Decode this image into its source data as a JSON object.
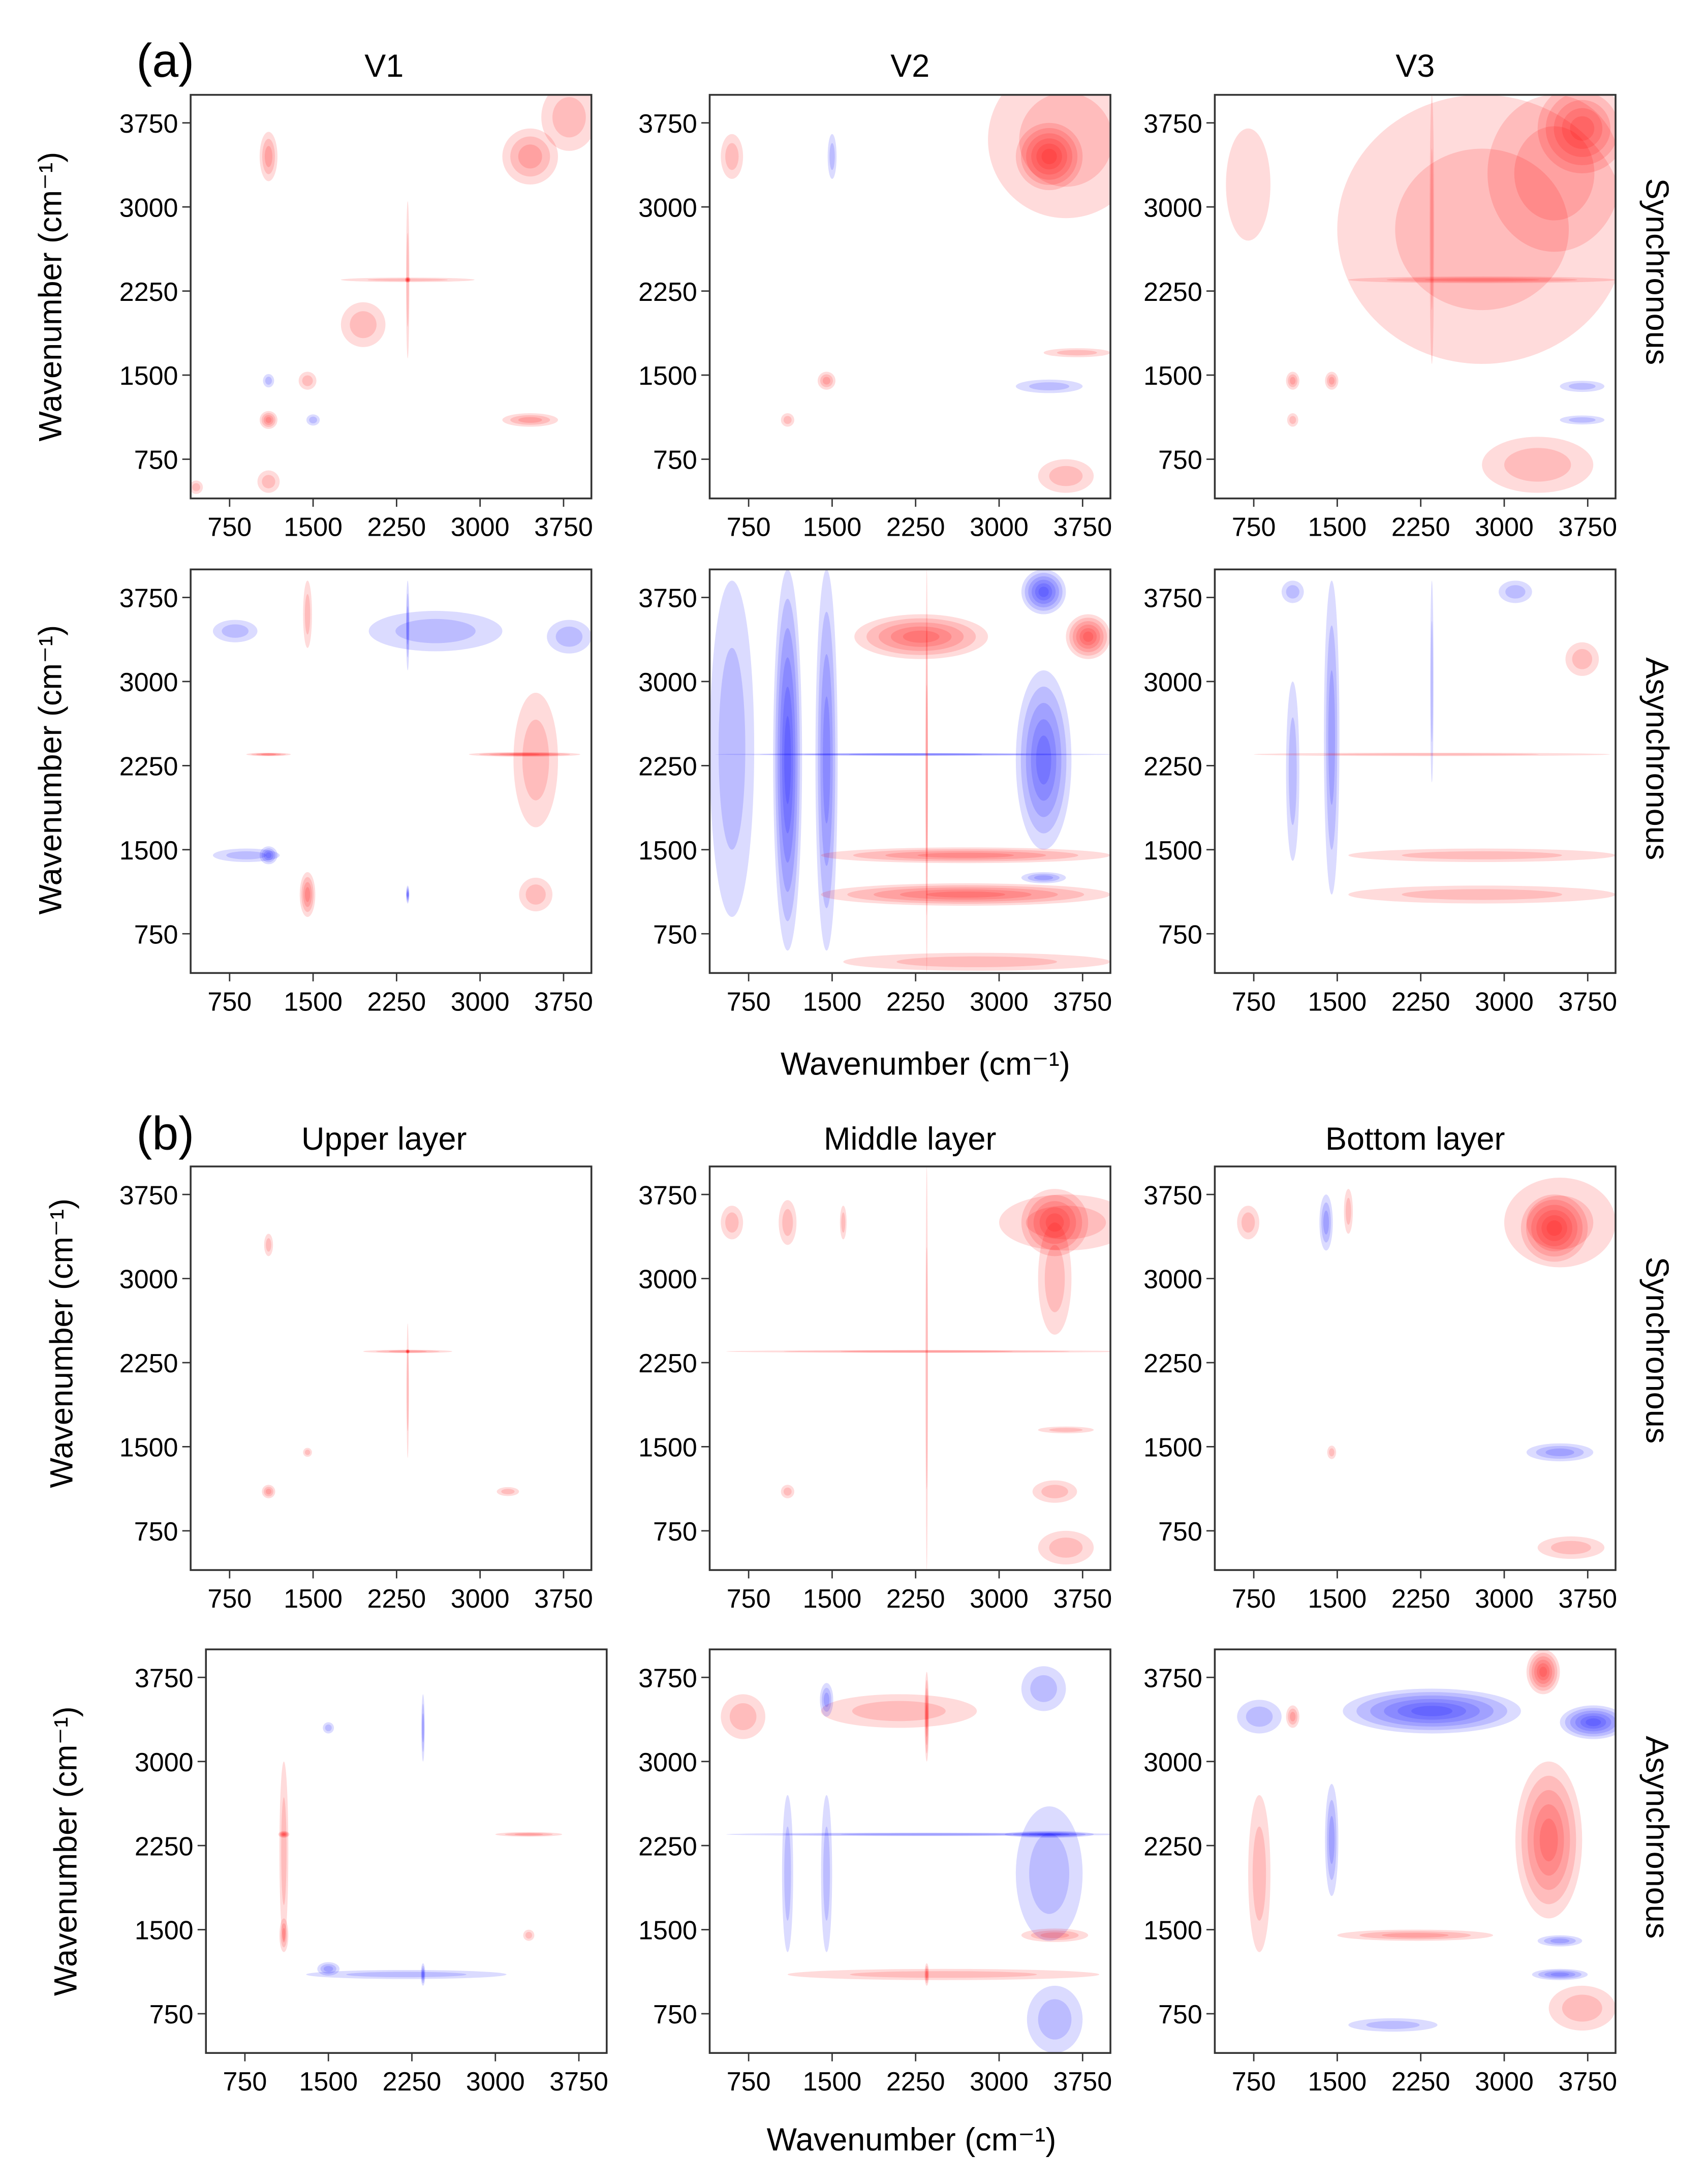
{
  "chart_data": {
    "type": "heatmap",
    "description_labels": {
      "group_a": "(a)",
      "group_b": "(b)",
      "row_sync": "Synchronous",
      "row_async": "Asynchronous",
      "ylabel": "Wavenumber (cm⁻¹)",
      "xlabel_a": "Wavenumber  (cm⁻¹)",
      "xlabel_b": "Wavenumber (cm⁻¹)"
    },
    "colors": {
      "positive": "#ff0000",
      "negative": "#0000ff",
      "frame": "#333333"
    },
    "xlim": [
      400,
      4000
    ],
    "ylim": [
      400,
      4000
    ],
    "ticks": [
      750,
      1500,
      2250,
      3000,
      3750
    ],
    "feature_format": "[x_wavenumber, y_wavenumber, x_halfwidth, y_halfwidth, sign, relative_intensity]",
    "panels": [
      {
        "group": "a",
        "title": "V1",
        "type": "Synchronous",
        "features": [
          [
            3450,
            3450,
            250,
            250,
            1,
            0.5
          ],
          [
            3800,
            3800,
            250,
            300,
            1,
            0.2
          ],
          [
            1100,
            3450,
            80,
            220,
            1,
            0.4
          ],
          [
            1100,
            1100,
            80,
            80,
            1,
            0.6
          ],
          [
            3450,
            1100,
            250,
            60,
            1,
            0.4
          ],
          [
            2350,
            2350,
            600,
            20,
            1,
            0.3
          ],
          [
            2350,
            2350,
            15,
            700,
            1,
            0.3
          ],
          [
            2350,
            2350,
            25,
            25,
            1,
            1.0
          ],
          [
            1950,
            1950,
            200,
            200,
            1,
            0.2
          ],
          [
            1450,
            1450,
            80,
            80,
            1,
            0.2
          ],
          [
            1100,
            1450,
            50,
            60,
            -1,
            0.2
          ],
          [
            1500,
            1100,
            60,
            50,
            -1,
            0.2
          ],
          [
            450,
            500,
            60,
            60,
            1,
            0.2
          ],
          [
            1100,
            550,
            100,
            100,
            1,
            0.2
          ]
        ]
      },
      {
        "group": "a",
        "title": "V2",
        "type": "Synchronous",
        "features": [
          [
            3600,
            3600,
            700,
            700,
            1,
            0.25
          ],
          [
            3450,
            3450,
            300,
            300,
            1,
            0.9
          ],
          [
            1450,
            1450,
            80,
            80,
            1,
            0.4
          ],
          [
            3450,
            1400,
            300,
            60,
            -1,
            0.3
          ],
          [
            600,
            3450,
            100,
            200,
            1,
            0.2
          ],
          [
            3600,
            600,
            250,
            150,
            1,
            0.3
          ],
          [
            1100,
            1100,
            60,
            60,
            1,
            0.2
          ],
          [
            3700,
            1700,
            300,
            40,
            1,
            0.2
          ],
          [
            1500,
            3450,
            40,
            200,
            -1,
            0.2
          ]
        ]
      },
      {
        "group": "a",
        "title": "V3",
        "type": "Synchronous",
        "features": [
          [
            2800,
            2800,
            1300,
            1200,
            1,
            0.2
          ],
          [
            3450,
            3300,
            600,
            700,
            1,
            0.3
          ],
          [
            3700,
            3700,
            400,
            400,
            1,
            0.7
          ],
          [
            2800,
            2350,
            1200,
            30,
            1,
            0.5
          ],
          [
            2350,
            2800,
            20,
            1200,
            1,
            0.3
          ],
          [
            1450,
            1450,
            60,
            80,
            1,
            0.5
          ],
          [
            1100,
            1450,
            60,
            80,
            1,
            0.4
          ],
          [
            1100,
            1100,
            50,
            60,
            1,
            0.3
          ],
          [
            3700,
            1400,
            200,
            50,
            -1,
            0.3
          ],
          [
            3700,
            1100,
            200,
            40,
            -1,
            0.3
          ],
          [
            3300,
            700,
            500,
            250,
            1,
            0.2
          ],
          [
            700,
            3200,
            200,
            500,
            1,
            0.15
          ]
        ]
      },
      {
        "group": "a",
        "title": "V1",
        "type": "Asynchronous",
        "features": [
          [
            2600,
            3450,
            600,
            180,
            -1,
            0.3
          ],
          [
            3500,
            2300,
            200,
            600,
            1,
            0.2
          ],
          [
            1450,
            1100,
            70,
            200,
            1,
            0.6
          ],
          [
            1100,
            1450,
            80,
            80,
            -1,
            0.6
          ],
          [
            900,
            1450,
            300,
            60,
            -1,
            0.3
          ],
          [
            3400,
            2350,
            500,
            20,
            1,
            0.7
          ],
          [
            1100,
            2350,
            200,
            15,
            1,
            0.6
          ],
          [
            3800,
            3400,
            200,
            150,
            -1,
            0.2
          ],
          [
            800,
            3450,
            200,
            100,
            -1,
            0.2
          ],
          [
            2350,
            3500,
            15,
            400,
            -1,
            0.5
          ],
          [
            2350,
            1100,
            15,
            80,
            -1,
            0.7
          ],
          [
            3500,
            1100,
            150,
            150,
            1,
            0.2
          ],
          [
            1450,
            3600,
            40,
            300,
            1,
            0.2
          ]
        ]
      },
      {
        "group": "a",
        "title": "V2",
        "type": "Asynchronous",
        "features": [
          [
            600,
            2400,
            200,
            1500,
            -1,
            0.3
          ],
          [
            1100,
            2300,
            130,
            1700,
            -1,
            0.9
          ],
          [
            1450,
            2300,
            100,
            1700,
            -1,
            0.6
          ],
          [
            3400,
            3800,
            200,
            200,
            -1,
            0.9
          ],
          [
            3400,
            2300,
            250,
            800,
            -1,
            0.8
          ],
          [
            2300,
            3400,
            600,
            200,
            1,
            0.8
          ],
          [
            3800,
            3400,
            200,
            200,
            1,
            0.9
          ],
          [
            2700,
            1100,
            1300,
            100,
            1,
            0.8
          ],
          [
            2700,
            1450,
            1300,
            70,
            1,
            0.6
          ],
          [
            2250,
            2350,
            1800,
            10,
            -1,
            0.6
          ],
          [
            2350,
            2200,
            10,
            1800,
            1,
            0.5
          ],
          [
            2800,
            500,
            1200,
            80,
            1,
            0.3
          ],
          [
            3400,
            1250,
            200,
            50,
            -1,
            0.4
          ]
        ]
      },
      {
        "group": "a",
        "title": "V3",
        "type": "Asynchronous",
        "features": [
          [
            1450,
            2500,
            70,
            1400,
            -1,
            0.4
          ],
          [
            1100,
            2200,
            60,
            800,
            -1,
            0.3
          ],
          [
            2800,
            1450,
            1200,
            60,
            1,
            0.3
          ],
          [
            2800,
            1100,
            1200,
            80,
            1,
            0.2
          ],
          [
            3700,
            3200,
            150,
            150,
            1,
            0.2
          ],
          [
            2350,
            2350,
            1600,
            15,
            1,
            0.3
          ],
          [
            2350,
            3000,
            15,
            900,
            -1,
            0.3
          ],
          [
            3100,
            3800,
            150,
            100,
            -1,
            0.2
          ],
          [
            1100,
            3800,
            100,
            100,
            -1,
            0.2
          ]
        ]
      },
      {
        "group": "b",
        "title": "Upper layer",
        "type": "Synchronous",
        "features": [
          [
            1100,
            1100,
            60,
            60,
            1,
            0.5
          ],
          [
            2350,
            2350,
            400,
            15,
            1,
            0.4
          ],
          [
            2350,
            2000,
            10,
            600,
            1,
            0.3
          ],
          [
            2350,
            2350,
            20,
            20,
            1,
            0.9
          ],
          [
            1100,
            3300,
            40,
            100,
            1,
            0.3
          ],
          [
            1450,
            1450,
            40,
            40,
            1,
            0.3
          ],
          [
            3250,
            1100,
            100,
            40,
            1,
            0.3
          ]
        ]
      },
      {
        "group": "b",
        "title": "Middle layer",
        "type": "Synchronous",
        "features": [
          [
            3600,
            3500,
            600,
            250,
            1,
            0.2
          ],
          [
            3500,
            3000,
            150,
            500,
            1,
            0.3
          ],
          [
            3500,
            3500,
            300,
            300,
            1,
            0.8
          ],
          [
            1100,
            3500,
            80,
            200,
            1,
            0.3
          ],
          [
            600,
            3500,
            100,
            150,
            1,
            0.2
          ],
          [
            1600,
            3500,
            30,
            150,
            1,
            0.2
          ],
          [
            2350,
            2350,
            1800,
            12,
            1,
            0.4
          ],
          [
            2350,
            2200,
            10,
            1800,
            1,
            0.3
          ],
          [
            3500,
            1100,
            200,
            100,
            1,
            0.3
          ],
          [
            3600,
            600,
            250,
            150,
            1,
            0.3
          ],
          [
            1100,
            1100,
            60,
            60,
            1,
            0.2
          ],
          [
            3600,
            1650,
            250,
            30,
            1,
            0.2
          ]
        ]
      },
      {
        "group": "b",
        "title": "Bottom layer",
        "type": "Synchronous",
        "features": [
          [
            3500,
            3500,
            500,
            400,
            1,
            0.3
          ],
          [
            3450,
            3450,
            300,
            300,
            1,
            0.9
          ],
          [
            1400,
            3500,
            60,
            250,
            -1,
            0.5
          ],
          [
            3500,
            1450,
            300,
            80,
            -1,
            0.5
          ],
          [
            3600,
            600,
            300,
            100,
            1,
            0.3
          ],
          [
            1450,
            1450,
            40,
            60,
            1,
            0.3
          ],
          [
            700,
            3500,
            100,
            150,
            1,
            0.2
          ],
          [
            1600,
            3600,
            40,
            200,
            1,
            0.2
          ]
        ]
      },
      {
        "group": "b",
        "title": "Upper layer",
        "type": "Asynchronous",
        "features": [
          [
            1100,
            2200,
            40,
            800,
            1,
            0.2
          ],
          [
            1100,
            1450,
            40,
            150,
            1,
            0.4
          ],
          [
            1100,
            2350,
            50,
            30,
            1,
            0.7
          ],
          [
            2200,
            1100,
            900,
            40,
            -1,
            0.3
          ],
          [
            1500,
            1150,
            100,
            60,
            -1,
            0.4
          ],
          [
            2350,
            1100,
            20,
            100,
            -1,
            0.6
          ],
          [
            2350,
            3300,
            15,
            300,
            -1,
            0.4
          ],
          [
            3300,
            2350,
            300,
            20,
            1,
            0.4
          ],
          [
            1500,
            3300,
            50,
            50,
            -1,
            0.2
          ],
          [
            3300,
            1450,
            50,
            50,
            1,
            0.3
          ]
        ]
      },
      {
        "group": "b",
        "title": "Middle layer",
        "type": "Asynchronous",
        "features": [
          [
            2100,
            3450,
            700,
            150,
            1,
            0.2
          ],
          [
            700,
            3400,
            200,
            200,
            1,
            0.2
          ],
          [
            2350,
            3400,
            20,
            400,
            1,
            0.8
          ],
          [
            3450,
            2000,
            300,
            600,
            -1,
            0.3
          ],
          [
            2350,
            2350,
            1800,
            15,
            -1,
            0.4
          ],
          [
            3450,
            2350,
            400,
            30,
            -1,
            0.8
          ],
          [
            1100,
            2000,
            50,
            700,
            -1,
            0.3
          ],
          [
            1450,
            2000,
            50,
            700,
            -1,
            0.3
          ],
          [
            1450,
            3550,
            60,
            150,
            -1,
            0.4
          ],
          [
            2500,
            1100,
            1400,
            50,
            1,
            0.3
          ],
          [
            3500,
            1450,
            300,
            60,
            1,
            0.4
          ],
          [
            3500,
            700,
            250,
            300,
            -1,
            0.3
          ],
          [
            2350,
            1100,
            20,
            100,
            1,
            0.6
          ],
          [
            3400,
            3650,
            200,
            200,
            -1,
            0.2
          ]
        ]
      },
      {
        "group": "b",
        "title": "Bottom layer",
        "type": "Asynchronous",
        "features": [
          [
            2350,
            3450,
            800,
            200,
            -1,
            0.9
          ],
          [
            3800,
            3350,
            300,
            150,
            -1,
            0.9
          ],
          [
            3350,
            3800,
            150,
            200,
            1,
            1.0
          ],
          [
            3400,
            2300,
            300,
            700,
            1,
            0.7
          ],
          [
            1450,
            2300,
            60,
            500,
            -1,
            0.5
          ],
          [
            1100,
            3400,
            60,
            100,
            1,
            0.5
          ],
          [
            800,
            3400,
            200,
            150,
            -1,
            0.3
          ],
          [
            2200,
            1450,
            700,
            50,
            1,
            0.4
          ],
          [
            3500,
            1400,
            200,
            50,
            -1,
            0.5
          ],
          [
            3500,
            1100,
            250,
            50,
            -1,
            0.6
          ],
          [
            2000,
            650,
            400,
            60,
            -1,
            0.2
          ],
          [
            800,
            2000,
            100,
            700,
            1,
            0.2
          ],
          [
            3700,
            800,
            300,
            200,
            1,
            0.3
          ]
        ]
      }
    ]
  }
}
